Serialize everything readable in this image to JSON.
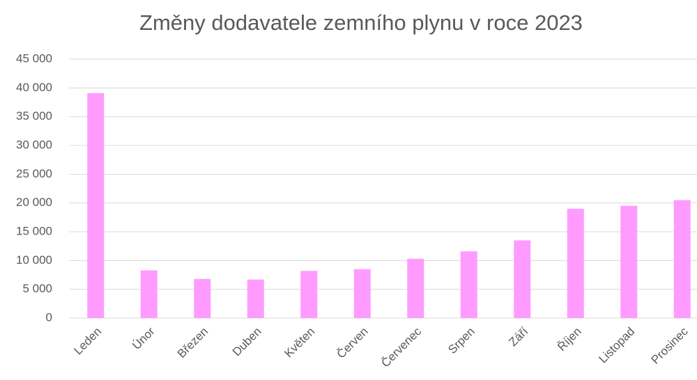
{
  "chart_data": {
    "type": "bar",
    "title": "Změny dodavatele zemního plynu v roce 2023",
    "categories": [
      "Leden",
      "Únor",
      "Březen",
      "Duben",
      "Květen",
      "Červen",
      "Červenec",
      "Srpen",
      "Září",
      "Říjen",
      "Listopad",
      "Prosinec"
    ],
    "values": [
      39100,
      8300,
      6800,
      6700,
      8200,
      8500,
      10300,
      11600,
      13500,
      19000,
      19500,
      20500
    ],
    "color": "#ff9bff",
    "ylim": [
      0,
      45000
    ],
    "yticks": [
      0,
      {
        "value": 5000,
        "label": "5 000"
      },
      {
        "value": 10000,
        "label": "10 000"
      },
      {
        "value": 15000,
        "label": "15 000"
      },
      {
        "value": 20000,
        "label": "20 000"
      },
      {
        "value": 25000,
        "label": "25 000"
      },
      {
        "value": 30000,
        "label": "30 000"
      },
      {
        "value": 35000,
        "label": "35 000"
      },
      {
        "value": 40000,
        "label": "40 000"
      },
      {
        "value": 45000,
        "label": "45 000"
      }
    ],
    "grid": true
  }
}
